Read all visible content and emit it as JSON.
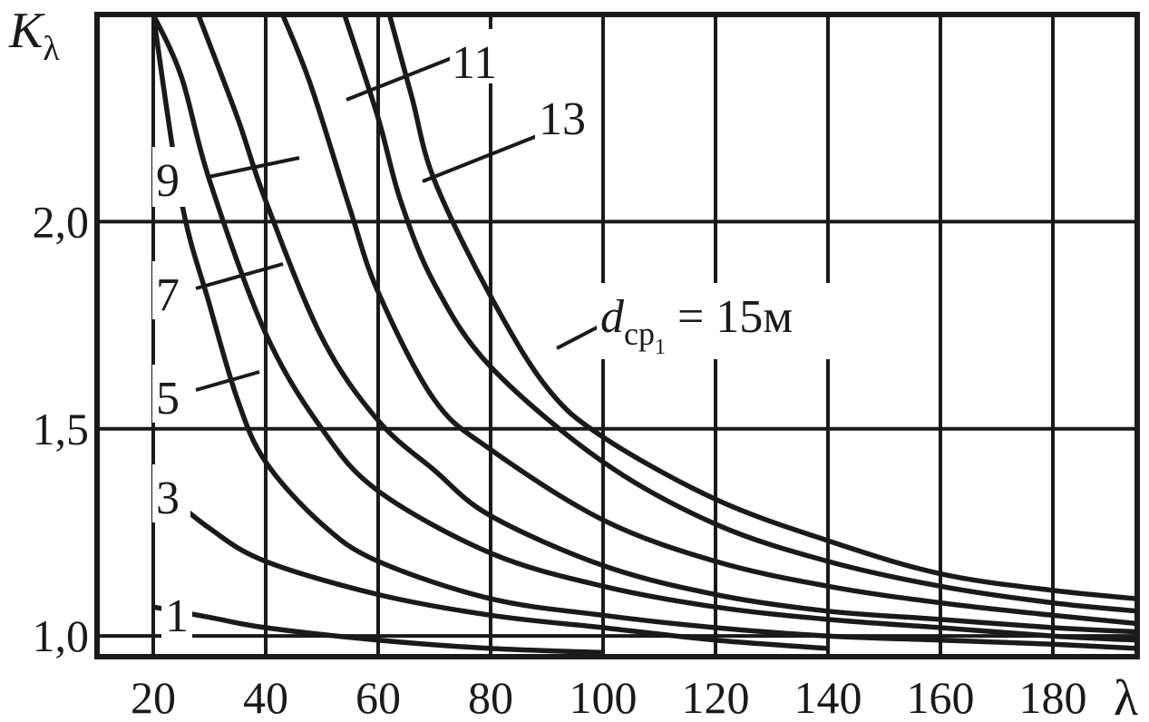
{
  "chart_data": {
    "type": "line",
    "title": "",
    "xlabel": "λ",
    "ylabel": "Kλ",
    "ylabel_parts": {
      "main": "K",
      "sub": "λ"
    },
    "xlim": [
      10,
      195
    ],
    "ylim": [
      0.95,
      2.5
    ],
    "grid": true,
    "x_ticks": [
      20,
      40,
      60,
      80,
      100,
      120,
      140,
      160,
      180
    ],
    "x_tick_labels": [
      "20",
      "40",
      "60",
      "80",
      "100",
      "120",
      "140",
      "160",
      "180"
    ],
    "y_ticks": [
      1.0,
      1.5,
      2.0
    ],
    "y_tick_labels": [
      "1,0",
      "1,5",
      "2,0"
    ],
    "series": [
      {
        "name": "1",
        "x": [
          20,
          30,
          40,
          60,
          80,
          100
        ],
        "y": [
          1.07,
          1.045,
          1.02,
          0.99,
          0.97,
          0.96
        ]
      },
      {
        "name": "3",
        "x": [
          20,
          30,
          40,
          60,
          80,
          100,
          120,
          140
        ],
        "y": [
          1.37,
          1.26,
          1.18,
          1.1,
          1.05,
          1.02,
          0.99,
          0.97
        ]
      },
      {
        "name": "5",
        "x": [
          20,
          25,
          30,
          35,
          40,
          50,
          60,
          80,
          100,
          120,
          140,
          160,
          180,
          195
        ],
        "y": [
          2.5,
          2.05,
          1.8,
          1.57,
          1.42,
          1.27,
          1.18,
          1.09,
          1.05,
          1.02,
          1.0,
          0.99,
          0.98,
          0.97
        ]
      },
      {
        "name": "7",
        "x": [
          20,
          25,
          30,
          40,
          50,
          60,
          80,
          100,
          120,
          140,
          160,
          180,
          195
        ],
        "y": [
          2.5,
          2.35,
          2.1,
          1.73,
          1.5,
          1.35,
          1.2,
          1.12,
          1.07,
          1.04,
          1.02,
          1.0,
          0.99
        ]
      },
      {
        "name": "9",
        "x": [
          28,
          35,
          40,
          50,
          60,
          70,
          80,
          100,
          120,
          140,
          160,
          180,
          195
        ],
        "y": [
          2.5,
          2.25,
          2.05,
          1.72,
          1.52,
          1.4,
          1.29,
          1.17,
          1.1,
          1.06,
          1.04,
          1.02,
          1.01
        ]
      },
      {
        "name": "11",
        "x": [
          43,
          48,
          55,
          60,
          70,
          80,
          100,
          120,
          140,
          160,
          180,
          195
        ],
        "y": [
          2.5,
          2.33,
          2.03,
          1.83,
          1.57,
          1.45,
          1.28,
          1.18,
          1.12,
          1.08,
          1.05,
          1.03
        ]
      },
      {
        "name": "13",
        "x": [
          54,
          60,
          64,
          70,
          80,
          100,
          120,
          140,
          160,
          180,
          195
        ],
        "y": [
          2.5,
          2.25,
          2.05,
          1.85,
          1.65,
          1.42,
          1.27,
          1.18,
          1.12,
          1.08,
          1.06
        ]
      },
      {
        "name": "15",
        "x": [
          62,
          66,
          70,
          80,
          90,
          100,
          120,
          140,
          160,
          180,
          195
        ],
        "y": [
          2.5,
          2.3,
          2.1,
          1.82,
          1.6,
          1.48,
          1.33,
          1.23,
          1.15,
          1.11,
          1.09
        ]
      }
    ],
    "annotations": {
      "label_9": "9",
      "label_7": "7",
      "label_5": "5",
      "label_3": "3",
      "label_1": "1",
      "label_11": "11",
      "label_13": "13",
      "d_main": "d",
      "d_sub": "ср",
      "d_subsub": "1",
      "d_value": " = 15м"
    }
  }
}
